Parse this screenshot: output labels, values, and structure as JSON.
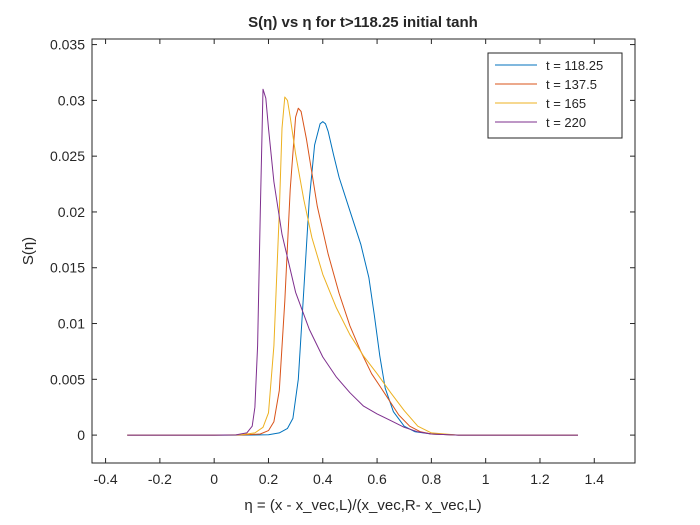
{
  "chart_data": {
    "type": "line",
    "title": "S(η) vs η for t>118.25 initial tanh",
    "xlabel": "η = (x - x_vec,L)/(x_vec,R- x_vec,L)",
    "ylabel": "S(η)",
    "xlim": [
      -0.45,
      1.55
    ],
    "ylim": [
      -0.0025,
      0.0355
    ],
    "xticks": [
      -0.4,
      -0.2,
      0,
      0.2,
      0.4,
      0.6,
      0.8,
      1,
      1.2,
      1.4
    ],
    "xtick_labels": [
      "-0.4",
      "-0.2",
      "0",
      "0.2",
      "0.4",
      "0.6",
      "0.8",
      "1",
      "1.2",
      "1.4"
    ],
    "yticks": [
      0,
      0.005,
      0.01,
      0.015,
      0.02,
      0.025,
      0.03,
      0.035
    ],
    "ytick_labels": [
      "0",
      "0.005",
      "0.01",
      "0.015",
      "0.02",
      "0.025",
      "0.03",
      "0.035"
    ],
    "grid": false,
    "legend_position": "top-right",
    "series": [
      {
        "name": "t = 118.25",
        "color": "#0072BD",
        "x": [
          -0.32,
          0.0,
          0.1,
          0.2,
          0.24,
          0.27,
          0.29,
          0.31,
          0.33,
          0.35,
          0.37,
          0.39,
          0.4,
          0.41,
          0.42,
          0.44,
          0.46,
          0.5,
          0.54,
          0.57,
          0.59,
          0.61,
          0.63,
          0.66,
          0.7,
          0.74,
          0.8,
          0.9,
          1.0,
          1.2,
          1.34
        ],
        "y": [
          0.0,
          0.0,
          0.0,
          3e-05,
          0.0002,
          0.0006,
          0.0015,
          0.005,
          0.013,
          0.021,
          0.026,
          0.0279,
          0.0281,
          0.0279,
          0.0272,
          0.0251,
          0.0231,
          0.0201,
          0.0171,
          0.0141,
          0.0107,
          0.0071,
          0.0042,
          0.0021,
          0.0008,
          0.0003,
          0.0001,
          0.0,
          0.0,
          0.0,
          0.0
        ]
      },
      {
        "name": "t = 137.5",
        "color": "#D95319",
        "x": [
          -0.32,
          0.0,
          0.1,
          0.17,
          0.2,
          0.22,
          0.24,
          0.26,
          0.28,
          0.3,
          0.31,
          0.32,
          0.34,
          0.36,
          0.38,
          0.42,
          0.46,
          0.5,
          0.54,
          0.58,
          0.61,
          0.64,
          0.68,
          0.72,
          0.76,
          0.8,
          0.9,
          1.0,
          1.2,
          1.34
        ],
        "y": [
          0.0,
          0.0,
          1e-05,
          0.0001,
          0.0004,
          0.0012,
          0.004,
          0.012,
          0.022,
          0.0285,
          0.0293,
          0.029,
          0.0265,
          0.0235,
          0.0205,
          0.0162,
          0.0127,
          0.0098,
          0.0075,
          0.0055,
          0.0044,
          0.0033,
          0.0018,
          0.0008,
          0.0003,
          0.0001,
          0.0,
          0.0,
          0.0,
          0.0
        ]
      },
      {
        "name": "t = 165",
        "color": "#EDB120",
        "x": [
          -0.32,
          0.0,
          0.1,
          0.15,
          0.18,
          0.2,
          0.22,
          0.24,
          0.25,
          0.26,
          0.27,
          0.28,
          0.3,
          0.33,
          0.36,
          0.4,
          0.45,
          0.5,
          0.55,
          0.6,
          0.65,
          0.7,
          0.75,
          0.8,
          0.9,
          1.0,
          1.2,
          1.34
        ],
        "y": [
          0.0,
          0.0,
          3e-05,
          0.0002,
          0.0007,
          0.002,
          0.008,
          0.02,
          0.0275,
          0.0303,
          0.03,
          0.0285,
          0.0252,
          0.0211,
          0.0177,
          0.0144,
          0.0114,
          0.009,
          0.0071,
          0.0055,
          0.0038,
          0.0022,
          0.0008,
          0.0002,
          0.0,
          0.0,
          0.0,
          0.0
        ]
      },
      {
        "name": "t = 220",
        "color": "#7E2F8E",
        "x": [
          -0.32,
          0.0,
          0.08,
          0.12,
          0.14,
          0.15,
          0.16,
          0.17,
          0.18,
          0.19,
          0.2,
          0.22,
          0.25,
          0.3,
          0.35,
          0.4,
          0.45,
          0.5,
          0.55,
          0.6,
          0.65,
          0.7,
          0.75,
          0.8,
          0.9,
          1.0,
          1.2,
          1.34
        ],
        "y": [
          0.0,
          0.0,
          2e-05,
          0.0002,
          0.0008,
          0.0025,
          0.008,
          0.02,
          0.031,
          0.0302,
          0.0275,
          0.0227,
          0.018,
          0.0128,
          0.0095,
          0.007,
          0.0052,
          0.0038,
          0.0026,
          0.0019,
          0.0013,
          0.0007,
          0.0003,
          0.0001,
          0.0,
          0.0,
          0.0,
          0.0
        ]
      }
    ]
  }
}
